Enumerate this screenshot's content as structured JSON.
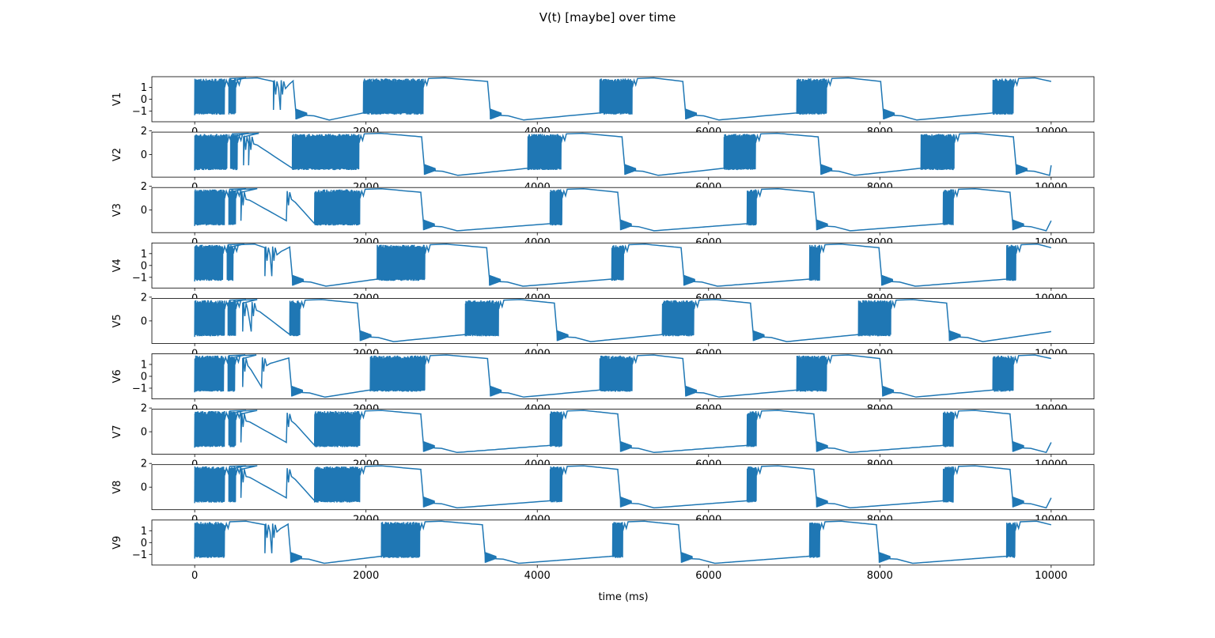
{
  "chart_data": {
    "type": "line",
    "title": "V(t) [maybe] over time",
    "xlabel": "time (ms)",
    "xlim": [
      -500,
      10500
    ],
    "x_ticks": [
      0,
      2000,
      4000,
      6000,
      8000,
      10000
    ],
    "x_tick_labels": [
      "0",
      "2000",
      "4000",
      "6000",
      "8000",
      "10000"
    ],
    "grid": false,
    "line_color": "#1f77b4",
    "subplots": [
      {
        "ylabel": "V1",
        "ylim": [
          -1.9,
          1.9
        ],
        "y_ticks": [
          -1,
          0,
          1
        ],
        "y_tick_labels": [
          "−1",
          "0",
          "1"
        ],
        "initial_bursts": [
          [
            0,
            350
          ],
          [
            400,
            480
          ]
        ],
        "dense_bursts": [
          [
            1970,
            2670
          ],
          [
            4730,
            5110
          ],
          [
            7030,
            7380
          ],
          [
            9320,
            9560
          ]
        ],
        "spikes": [
          920,
          1000
        ],
        "drops": [
          1150,
          3420,
          5700,
          8010
        ]
      },
      {
        "ylabel": "V2",
        "ylim": [
          -1.9,
          1.9
        ],
        "y_ticks": [
          0,
          2
        ],
        "y_tick_labels": [
          "0",
          "2"
        ],
        "initial_bursts": [
          [
            0,
            380
          ],
          [
            420,
            500
          ]
        ],
        "dense_bursts": [
          [
            1140,
            1920
          ],
          [
            3890,
            4280
          ],
          [
            6180,
            6550
          ],
          [
            8480,
            8870
          ]
        ],
        "spikes": [
          570,
          630
        ],
        "drops": [
          2650,
          4990,
          7280,
          9560
        ]
      },
      {
        "ylabel": "V3",
        "ylim": [
          -1.9,
          1.9
        ],
        "y_ticks": [
          0,
          2
        ],
        "y_tick_labels": [
          "0",
          "2"
        ],
        "initial_bursts": [
          [
            0,
            350
          ],
          [
            400,
            480
          ]
        ],
        "dense_bursts": [
          [
            1400,
            1930
          ],
          [
            4150,
            4290
          ],
          [
            6450,
            6560
          ],
          [
            8740,
            8860
          ]
        ],
        "spikes": [
          540,
          1070
        ],
        "drops": [
          2640,
          4940,
          7230,
          9520
        ]
      },
      {
        "ylabel": "V4",
        "ylim": [
          -1.9,
          1.9
        ],
        "y_ticks": [
          -1,
          0,
          1
        ],
        "y_tick_labels": [
          "−1",
          "0",
          "1"
        ],
        "initial_bursts": [
          [
            0,
            330
          ],
          [
            380,
            450
          ]
        ],
        "dense_bursts": [
          [
            2130,
            2690
          ],
          [
            4870,
            5010
          ],
          [
            7180,
            7300
          ],
          [
            9480,
            9590
          ]
        ],
        "spikes": [
          820,
          900
        ],
        "drops": [
          1110,
          3410,
          5680,
          7990
        ]
      },
      {
        "ylabel": "V5",
        "ylim": [
          -1.9,
          1.9
        ],
        "y_ticks": [
          0,
          2
        ],
        "y_tick_labels": [
          "0",
          "2"
        ],
        "initial_bursts": [
          [
            0,
            350
          ],
          [
            390,
            480
          ]
        ],
        "dense_bursts": [
          [
            1110,
            1230
          ],
          [
            3160,
            3550
          ],
          [
            5460,
            5830
          ],
          [
            7750,
            8130
          ]
        ],
        "spikes": [
          560,
          660
        ],
        "drops": [
          1900,
          4200,
          6490,
          8780
        ]
      },
      {
        "ylabel": "V6",
        "ylim": [
          -1.9,
          1.9
        ],
        "y_ticks": [
          -1,
          0,
          1
        ],
        "y_tick_labels": [
          "−1",
          "0",
          "1"
        ],
        "initial_bursts": [
          [
            0,
            340
          ],
          [
            390,
            470
          ]
        ],
        "dense_bursts": [
          [
            2050,
            2690
          ],
          [
            4730,
            5110
          ],
          [
            7030,
            7380
          ],
          [
            9320,
            9560
          ]
        ],
        "spikes": [
          560,
          780
        ],
        "drops": [
          1100,
          3420,
          5700,
          8000
        ]
      },
      {
        "ylabel": "V7",
        "ylim": [
          -1.9,
          1.9
        ],
        "y_ticks": [
          0,
          2
        ],
        "y_tick_labels": [
          "0",
          "2"
        ],
        "initial_bursts": [
          [
            0,
            350
          ],
          [
            400,
            480
          ]
        ],
        "dense_bursts": [
          [
            1400,
            1930
          ],
          [
            4150,
            4290
          ],
          [
            6450,
            6560
          ],
          [
            8740,
            8860
          ]
        ],
        "spikes": [
          540,
          1070
        ],
        "drops": [
          2640,
          4940,
          7230,
          9520
        ]
      },
      {
        "ylabel": "V8",
        "ylim": [
          -1.9,
          1.9
        ],
        "y_ticks": [
          0,
          2
        ],
        "y_tick_labels": [
          "0",
          "2"
        ],
        "initial_bursts": [
          [
            0,
            350
          ],
          [
            400,
            480
          ]
        ],
        "dense_bursts": [
          [
            1400,
            1930
          ],
          [
            4150,
            4290
          ],
          [
            6450,
            6560
          ],
          [
            8740,
            8860
          ]
        ],
        "spikes": [
          540,
          1070
        ],
        "drops": [
          2640,
          4940,
          7230,
          9520
        ]
      },
      {
        "ylabel": "V9",
        "ylim": [
          -1.9,
          1.9
        ],
        "y_ticks": [
          -1,
          0,
          1
        ],
        "y_tick_labels": [
          "−1",
          "0",
          "1"
        ],
        "initial_bursts": [
          [
            0,
            350
          ]
        ],
        "dense_bursts": [
          [
            2180,
            2630
          ],
          [
            4880,
            5000
          ],
          [
            7180,
            7300
          ],
          [
            9480,
            9580
          ]
        ],
        "spikes": [
          820,
          900
        ],
        "drops": [
          1090,
          3360,
          5650,
          7960
        ]
      }
    ]
  }
}
